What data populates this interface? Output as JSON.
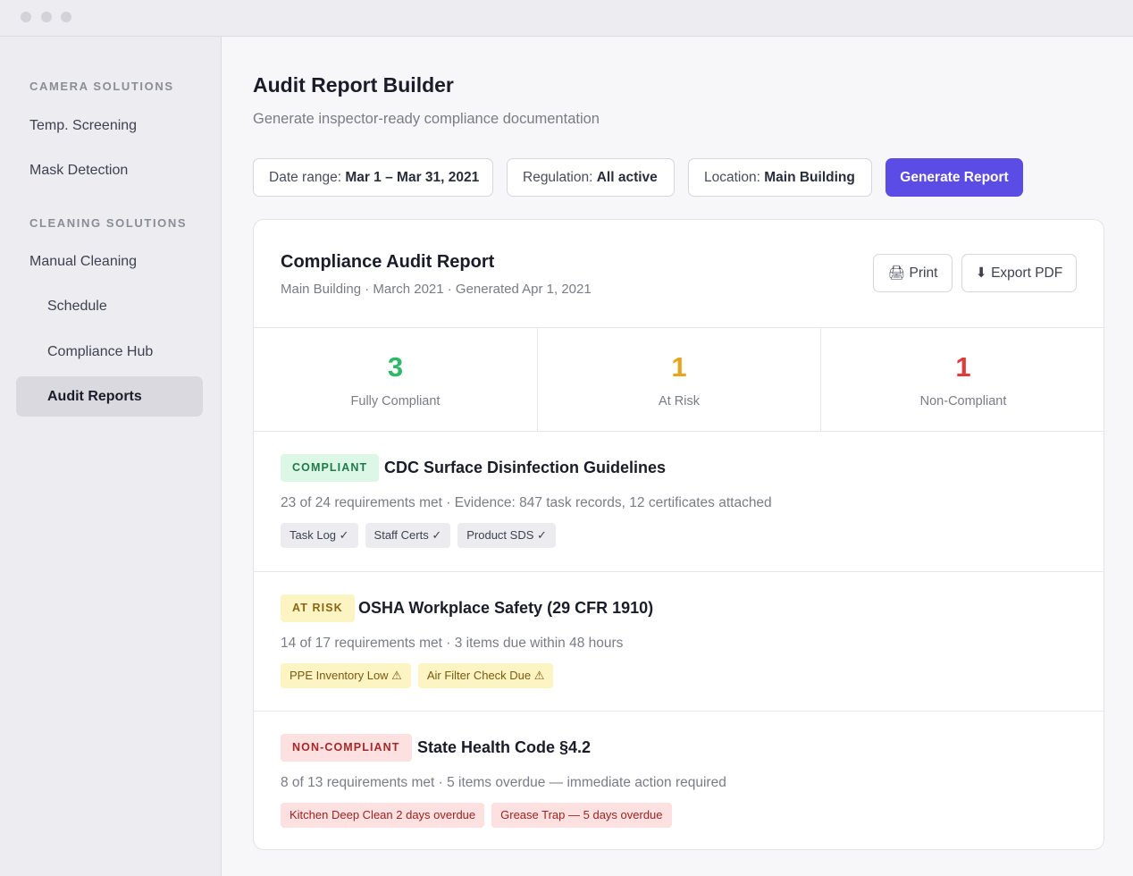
{
  "sidebar": {
    "sections": [
      {
        "title": "CAMERA SOLUTIONS",
        "items": [
          "Temp. Screening",
          "Mask Detection"
        ]
      },
      {
        "title": "CLEANING SOLUTIONS",
        "items": [
          "Manual Cleaning"
        ]
      }
    ],
    "sub_items": [
      "Schedule",
      "Compliance Hub",
      "Audit Reports"
    ],
    "active_item": "Audit Reports"
  },
  "header": {
    "title": "Audit Report Builder",
    "subtitle": "Generate inspector-ready compliance documentation"
  },
  "filters": [
    {
      "label": "Date range:",
      "value": "Mar 1 – Mar 31, 2021"
    },
    {
      "label": "Regulation:",
      "value": "All active"
    },
    {
      "label": "Location:",
      "value": "Main Building"
    }
  ],
  "generate_label": "Generate Report",
  "report": {
    "title": "Compliance Audit Report",
    "meta": "Main Building · March 2021 · Generated Apr 1, 2021",
    "print_label": "🖨 Print",
    "export_label": "⬇ Export PDF"
  },
  "stats": [
    {
      "value": "3",
      "label": "Fully Compliant",
      "color": "#2fb866"
    },
    {
      "value": "1",
      "label": "At Risk",
      "color": "#e6a521"
    },
    {
      "value": "1",
      "label": "Non-Compliant",
      "color": "#dc3c3c"
    }
  ],
  "regulations": [
    {
      "status": "COMPLIANT",
      "name": "CDC Surface Disinfection Guidelines",
      "detail": "23 of 24 requirements met · Evidence: 847 task records, 12 certificates attached",
      "chips": [
        "Task Log ✓",
        "Staff Certs ✓",
        "Product SDS ✓"
      ]
    },
    {
      "status": "AT RISK",
      "name": "OSHA Workplace Safety (29 CFR 1910)",
      "detail": "14 of 17 requirements met · 3 items due within 48 hours",
      "chips": [
        "PPE Inventory Low ⚠",
        "Air Filter Check Due ⚠"
      ]
    },
    {
      "status": "NON-COMPLIANT",
      "name": "State Health Code §4.2",
      "detail": "8 of 13 requirements met · 5 items overdue — immediate action required",
      "chips": [
        "Kitchen Deep Clean 2 days overdue",
        "Grease Trap — 5 days overdue"
      ]
    }
  ],
  "colors": {
    "accent": "#5b4ce6",
    "compliant_bg": "#dcf7e6",
    "compliant_fg": "#1e7a47",
    "risk_bg": "#fdf4c4",
    "risk_fg": "#8a6514",
    "noncompliant_bg": "#fde0e0",
    "noncompliant_fg": "#a82828"
  }
}
